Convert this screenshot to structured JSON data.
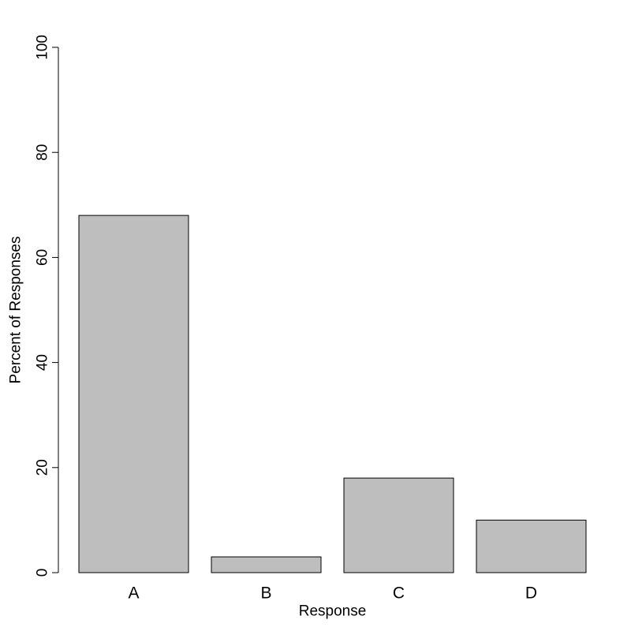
{
  "chart_data": {
    "type": "bar",
    "categories": [
      "A",
      "B",
      "C",
      "D"
    ],
    "values": [
      68,
      3,
      18,
      10
    ],
    "xlabel": "Response",
    "ylabel": "Percent of Responses",
    "ylim": [
      0,
      100
    ],
    "yticks": [
      0,
      20,
      40,
      60,
      80,
      100
    ],
    "grid": false,
    "legend": "none",
    "colors": {
      "bar_fill": "#bebebe",
      "bar_stroke": "#000000",
      "axis": "#000000",
      "background": "#ffffff"
    }
  }
}
